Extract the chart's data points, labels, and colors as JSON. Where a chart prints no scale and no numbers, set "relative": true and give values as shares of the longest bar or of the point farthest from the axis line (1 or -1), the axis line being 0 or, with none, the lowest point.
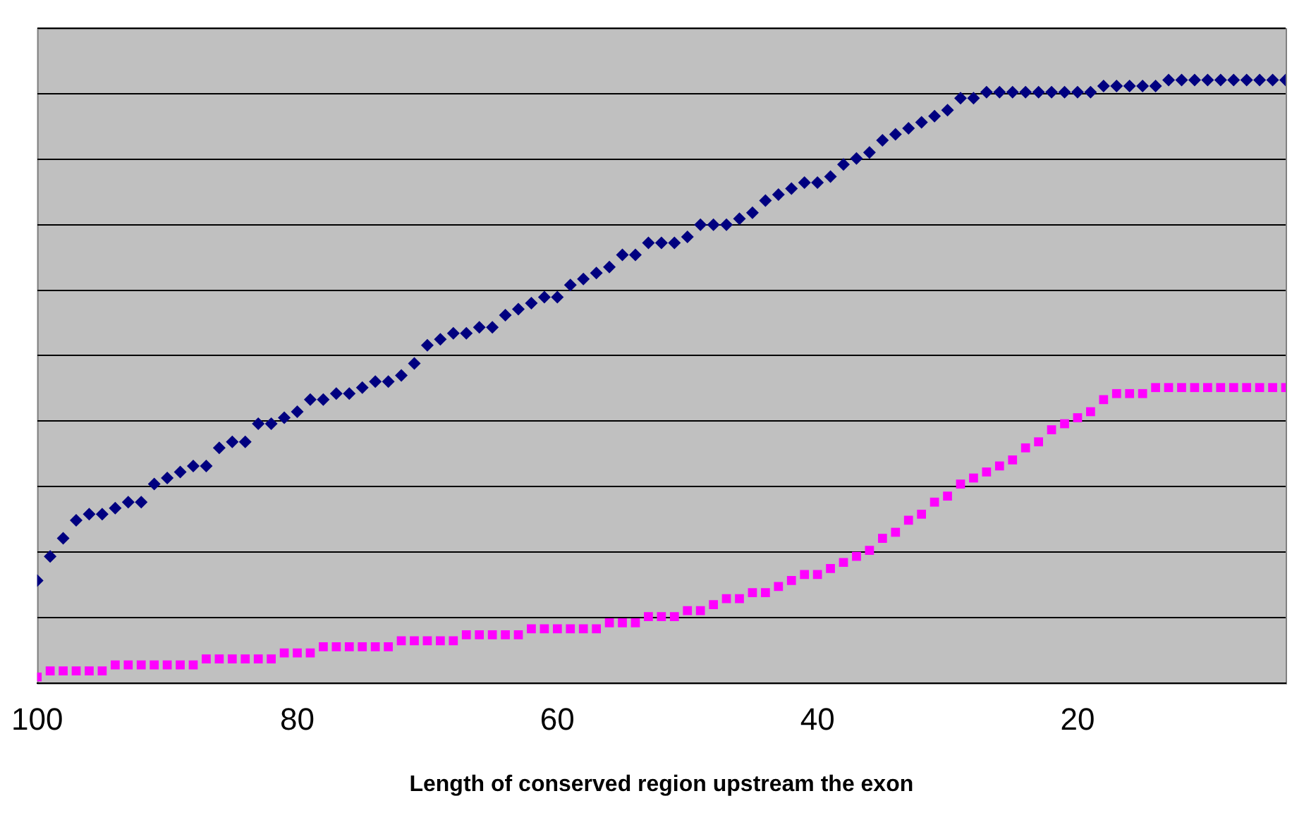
{
  "chart_data": {
    "type": "scatter",
    "relative": true,
    "xlabel": "Length of conserved region upstream the exon",
    "xlim": [
      100,
      4
    ],
    "xticks": [
      100,
      80,
      60,
      40,
      20
    ],
    "grid": "y",
    "x": [
      100,
      99,
      98,
      97,
      96,
      95,
      94,
      93,
      92,
      91,
      90,
      89,
      88,
      87,
      86,
      85,
      84,
      83,
      82,
      81,
      80,
      79,
      78,
      77,
      76,
      75,
      74,
      73,
      72,
      71,
      70,
      69,
      68,
      67,
      66,
      65,
      64,
      63,
      62,
      61,
      60,
      59,
      58,
      57,
      56,
      55,
      54,
      53,
      52,
      51,
      50,
      49,
      48,
      47,
      46,
      45,
      44,
      43,
      42,
      41,
      40,
      39,
      38,
      37,
      36,
      35,
      34,
      33,
      32,
      31,
      30,
      29,
      28,
      27,
      26,
      25,
      24,
      23,
      22,
      21,
      20,
      19,
      18,
      17,
      16,
      15,
      14,
      13,
      12,
      11,
      10,
      9,
      8,
      7,
      6,
      5,
      4
    ],
    "series": [
      {
        "color": "#000080",
        "marker": "diamond",
        "values": [
          0.17,
          0.21,
          0.24,
          0.27,
          0.28,
          0.28,
          0.29,
          0.3,
          0.3,
          0.33,
          0.34,
          0.35,
          0.36,
          0.36,
          0.39,
          0.4,
          0.4,
          0.43,
          0.43,
          0.44,
          0.45,
          0.47,
          0.47,
          0.48,
          0.48,
          0.49,
          0.5,
          0.5,
          0.51,
          0.53,
          0.56,
          0.57,
          0.58,
          0.58,
          0.59,
          0.59,
          0.61,
          0.62,
          0.63,
          0.64,
          0.64,
          0.66,
          0.67,
          0.68,
          0.69,
          0.71,
          0.71,
          0.73,
          0.73,
          0.73,
          0.74,
          0.76,
          0.76,
          0.76,
          0.77,
          0.78,
          0.8,
          0.81,
          0.82,
          0.83,
          0.83,
          0.84,
          0.86,
          0.87,
          0.88,
          0.9,
          0.91,
          0.92,
          0.93,
          0.94,
          0.95,
          0.97,
          0.97,
          0.98,
          0.98,
          0.98,
          0.98,
          0.98,
          0.98,
          0.98,
          0.98,
          0.98,
          0.99,
          0.99,
          0.99,
          0.99,
          0.99,
          1.0,
          1.0,
          1.0,
          1.0,
          1.0,
          1.0,
          1.0,
          1.0,
          1.0,
          1.0
        ]
      },
      {
        "color": "#ff00ff",
        "marker": "square",
        "values": [
          0.01,
          0.02,
          0.02,
          0.02,
          0.02,
          0.02,
          0.03,
          0.03,
          0.03,
          0.03,
          0.03,
          0.03,
          0.03,
          0.04,
          0.04,
          0.04,
          0.04,
          0.04,
          0.04,
          0.05,
          0.05,
          0.05,
          0.06,
          0.06,
          0.06,
          0.06,
          0.06,
          0.06,
          0.07,
          0.07,
          0.07,
          0.07,
          0.07,
          0.08,
          0.08,
          0.08,
          0.08,
          0.08,
          0.09,
          0.09,
          0.09,
          0.09,
          0.09,
          0.09,
          0.1,
          0.1,
          0.1,
          0.11,
          0.11,
          0.11,
          0.12,
          0.12,
          0.13,
          0.14,
          0.14,
          0.15,
          0.15,
          0.16,
          0.17,
          0.18,
          0.18,
          0.19,
          0.2,
          0.21,
          0.22,
          0.24,
          0.25,
          0.27,
          0.28,
          0.3,
          0.31,
          0.33,
          0.34,
          0.35,
          0.36,
          0.37,
          0.39,
          0.4,
          0.42,
          0.43,
          0.44,
          0.45,
          0.47,
          0.48,
          0.48,
          0.48,
          0.49,
          0.49,
          0.49,
          0.49,
          0.49,
          0.49,
          0.49,
          0.49,
          0.49,
          0.49,
          0.49
        ]
      }
    ]
  }
}
